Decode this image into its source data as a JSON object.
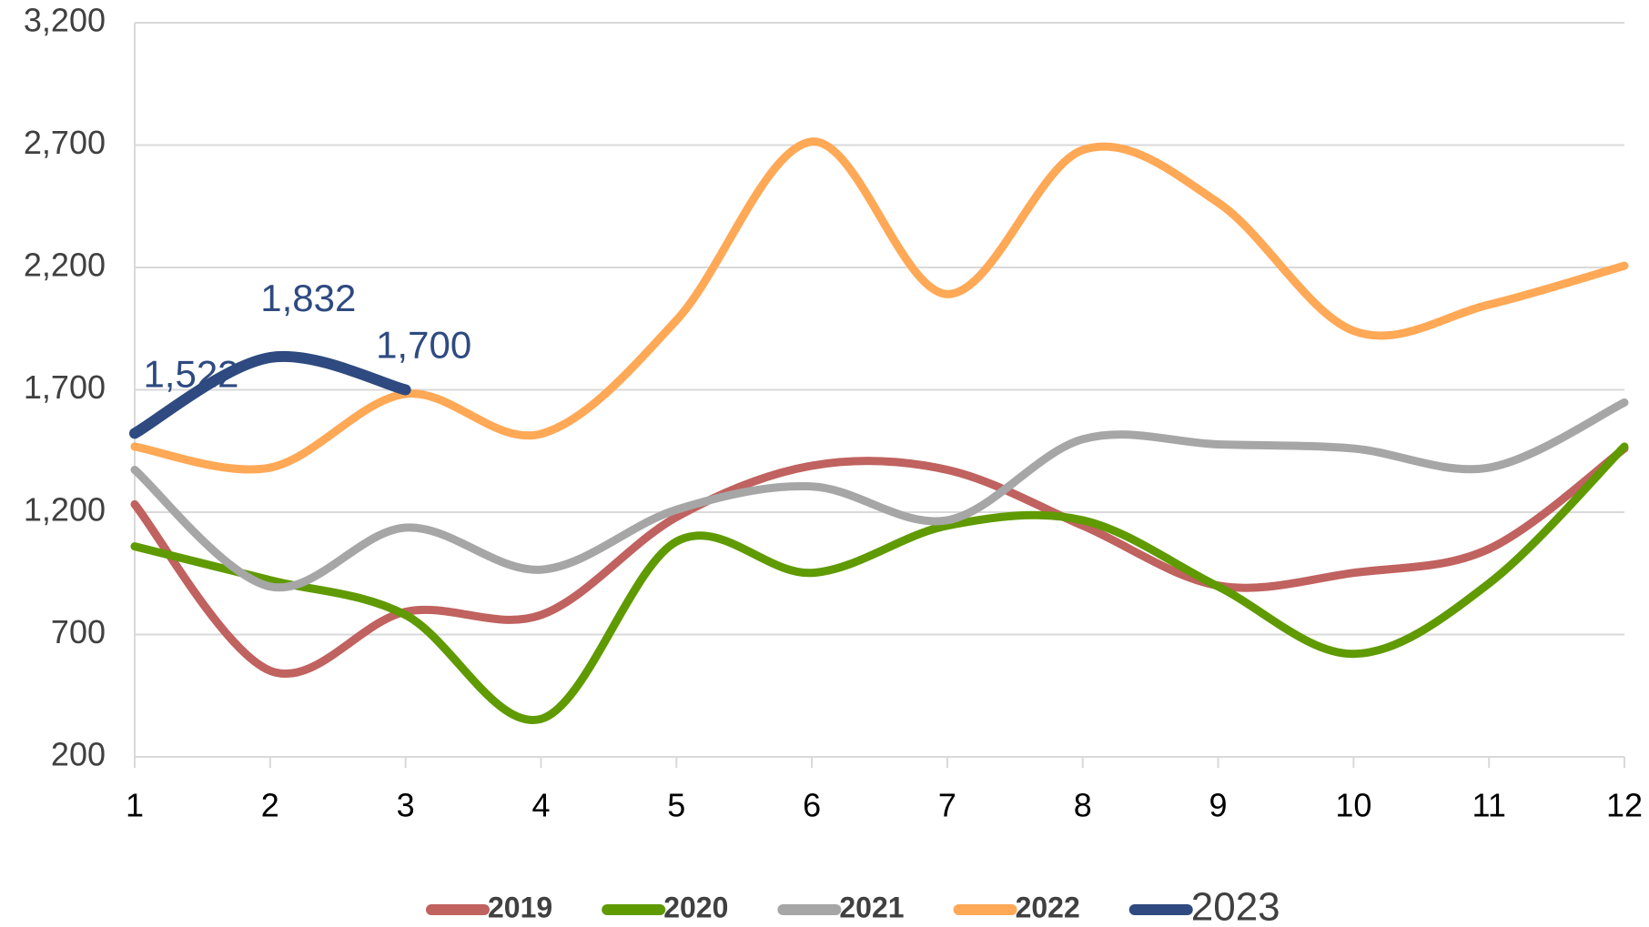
{
  "chart_data": {
    "type": "line",
    "x": [
      1,
      2,
      3,
      4,
      5,
      6,
      7,
      8,
      9,
      10,
      11,
      12
    ],
    "xlim": [
      1,
      12
    ],
    "xticks": [
      1,
      2,
      3,
      4,
      5,
      6,
      7,
      8,
      9,
      10,
      11,
      12
    ],
    "ylim": [
      200,
      3200
    ],
    "yticks": [
      200,
      700,
      {
        "value": 1200,
        "label": "1,200"
      },
      {
        "value": 1700,
        "label": "1,700"
      },
      {
        "value": 2200,
        "label": "2,200"
      },
      {
        "value": 2700,
        "label": "2,700"
      },
      {
        "value": 3200,
        "label": "3,200"
      }
    ],
    "grid": true,
    "legend": "bottom",
    "series": [
      {
        "name": "2019",
        "color": "#c0625f",
        "values": [
          1232,
          552,
          793,
          780,
          1180,
          1390,
          1373,
          1145,
          900,
          952,
          1050,
          1460
        ]
      },
      {
        "name": "2020",
        "color": "#5f9a00",
        "values": [
          1060,
          922,
          780,
          355,
          1080,
          952,
          1145,
          1167,
          896,
          621,
          909,
          1468
        ]
      },
      {
        "name": "2021",
        "color": "#a6a6a6",
        "values": [
          1373,
          896,
          1137,
          965,
          1210,
          1305,
          1167,
          1498,
          1477,
          1460,
          1382,
          1648
        ]
      },
      {
        "name": "2022",
        "color": "#ffa856",
        "values": [
          1468,
          1382,
          1683,
          1520,
          1984,
          2714,
          2091,
          2680,
          2465,
          1941,
          2048,
          2207
        ]
      },
      {
        "name": "2023",
        "color": "#2e4a80",
        "values": [
          1522,
          1832,
          1700,
          null,
          null,
          null,
          null,
          null,
          null,
          null,
          null,
          null
        ],
        "value_labels": [
          "1,522",
          "1,832",
          "1,700",
          null,
          null,
          null,
          null,
          null,
          null,
          null,
          null,
          null
        ]
      }
    ]
  }
}
